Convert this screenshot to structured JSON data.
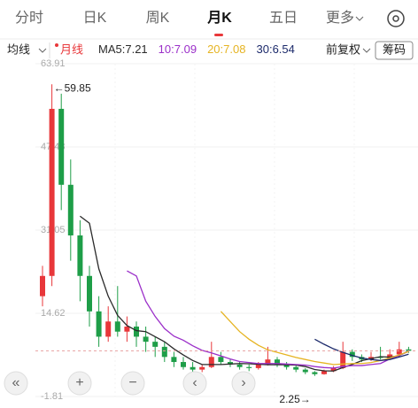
{
  "tabs": [
    "分时",
    "日K",
    "周K",
    "月K",
    "五日",
    "更多"
  ],
  "selected_tab": 3,
  "toolbar": {
    "ma_menu": "均线",
    "period": "月线",
    "adjust": "前复权",
    "chips": "筹码"
  },
  "chart_data": {
    "type": "candlestick",
    "open": [
      18,
      22,
      55,
      40,
      30,
      22,
      15,
      10,
      13,
      11,
      12,
      10,
      9,
      8,
      6,
      5,
      4,
      3.5,
      4,
      6,
      5,
      4.5,
      4,
      3.8,
      4.5,
      5.5,
      4.5,
      4,
      3.5,
      3,
      2.6,
      3.2,
      3.8,
      7,
      6,
      5.5,
      6,
      5.8,
      6.5,
      7.5
    ],
    "high": [
      24,
      59.85,
      58,
      45,
      33,
      24,
      18,
      16,
      20,
      14,
      13,
      12,
      10,
      9,
      7,
      6,
      5,
      4.5,
      9,
      7,
      5.5,
      5,
      4.5,
      5,
      8,
      6,
      5,
      4.3,
      3.8,
      3.2,
      3.5,
      4.2,
      9,
      7.5,
      6.5,
      7,
      8,
      7.5,
      9,
      8
    ],
    "low": [
      16,
      20,
      35,
      25,
      17,
      12,
      8,
      9,
      10,
      9,
      8,
      7,
      6,
      5,
      4,
      3.5,
      3,
      3,
      3.8,
      4.5,
      4,
      3.5,
      3.2,
      3.5,
      4.3,
      4,
      3.5,
      3,
      2.6,
      2.25,
      2.5,
      3,
      3.6,
      5.2,
      5,
      5.2,
      5.5,
      5.5,
      6,
      6.8
    ],
    "close": [
      22,
      55,
      40,
      30,
      22,
      15,
      10,
      13,
      11,
      12,
      10,
      9,
      8,
      6,
      5,
      4,
      3.5,
      4,
      6,
      5,
      4.5,
      4,
      3.8,
      4.5,
      5.5,
      4.5,
      4,
      3.5,
      3,
      2.6,
      3.2,
      3.8,
      7,
      6,
      5.5,
      6,
      5.8,
      6.5,
      7.5,
      7.21
    ],
    "up_color": "#e8373a",
    "down_color": "#1e9e48",
    "series": [
      {
        "name": "MA5",
        "color": "#2a2a2a",
        "values": [
          null,
          null,
          null,
          null,
          33.8,
          32.4,
          23.4,
          18,
          14.2,
          12.2,
          11.2,
          11,
          10,
          9,
          7.6,
          6.4,
          5.3,
          4.5,
          4.5,
          4.5,
          4.6,
          4.7,
          4.66,
          4.56,
          4.46,
          4.46,
          4.46,
          4.4,
          4.1,
          3.52,
          3.26,
          3.22,
          3.92,
          4.52,
          5.26,
          5.66,
          6.06,
          5.96,
          6.26,
          7.21
        ]
      },
      {
        "name": "10",
        "color": "#9b2fc9",
        "values": [
          null,
          null,
          null,
          null,
          null,
          null,
          null,
          null,
          null,
          23,
          22,
          17,
          14,
          11.6,
          10.1,
          9.3,
          8.2,
          7.3,
          6.8,
          6.2,
          5.6,
          5.1,
          4.9,
          4.7,
          4.7,
          4.7,
          4.6,
          4.5,
          4.4,
          4.1,
          3.9,
          3.8,
          4.1,
          4.3,
          4.3,
          4.5,
          4.7,
          5.6,
          6.3,
          7.09
        ]
      },
      {
        "name": "20",
        "color": "#e6b422",
        "values": [
          null,
          null,
          null,
          null,
          null,
          null,
          null,
          null,
          null,
          null,
          null,
          null,
          null,
          null,
          null,
          null,
          null,
          null,
          null,
          15,
          13,
          11,
          9.5,
          8.3,
          7.4,
          6.9,
          6.4,
          5.9,
          5.5,
          5.1,
          4.8,
          4.5,
          4.6,
          4.7,
          4.7,
          4.9,
          5.3,
          5.8,
          6.4,
          7.08
        ]
      },
      {
        "name": "30",
        "color": "#1c2a6b",
        "values": [
          null,
          null,
          null,
          null,
          null,
          null,
          null,
          null,
          null,
          null,
          null,
          null,
          null,
          null,
          null,
          null,
          null,
          null,
          null,
          null,
          null,
          null,
          null,
          null,
          null,
          null,
          null,
          null,
          null,
          9.5,
          8.5,
          7.6,
          6.9,
          6.3,
          5.8,
          5.5,
          5.3,
          5.5,
          6.0,
          6.54
        ]
      }
    ],
    "ylim": [
      -1.81,
      63.91
    ],
    "yticks": [
      -1.81,
      14.62,
      31.05,
      47.48,
      63.91
    ],
    "grid": true,
    "annotations": [
      "←59.85",
      "2.25→"
    ]
  }
}
